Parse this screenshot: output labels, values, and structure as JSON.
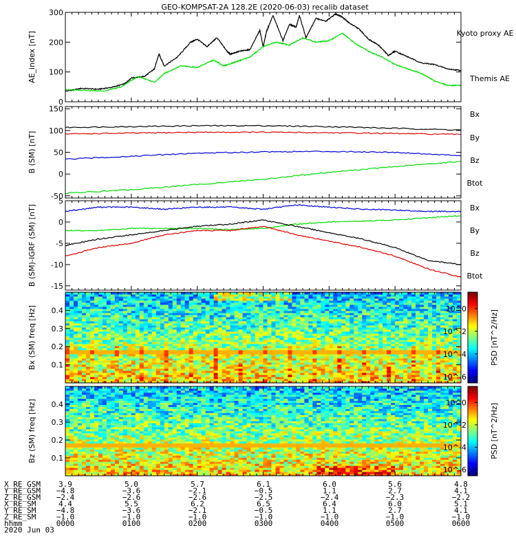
{
  "title": "GEO-KOMPSAT-2A 128.2E (2020-06-03) recalib dataset",
  "chart_data": [
    {
      "type": "line",
      "ylabel": "AE_index [nT]",
      "ylim": [
        0,
        300
      ],
      "yticks": [
        0,
        100,
        200,
        300
      ],
      "xlim": [
        0,
        6
      ],
      "x_unit": "hours UT",
      "legend": [
        "Kyoto proxy AE",
        "Themis AE"
      ],
      "series": [
        {
          "name": "Themis AE",
          "color": "#000000",
          "x": [
            0,
            0.25,
            0.5,
            0.7,
            0.9,
            1.0,
            1.2,
            1.35,
            1.42,
            1.5,
            1.7,
            1.9,
            2.0,
            2.15,
            2.3,
            2.45,
            2.5,
            2.65,
            2.8,
            2.95,
            3.0,
            3.05,
            3.15,
            3.3,
            3.4,
            3.5,
            3.55,
            3.65,
            3.8,
            3.95,
            4.1,
            4.2,
            4.3,
            4.45,
            4.6,
            4.75,
            4.9,
            5.0,
            5.2,
            5.4,
            5.6,
            5.8,
            6.0
          ],
          "values": [
            35,
            45,
            42,
            48,
            60,
            80,
            85,
            110,
            160,
            120,
            150,
            200,
            210,
            185,
            215,
            170,
            160,
            170,
            175,
            240,
            185,
            235,
            290,
            205,
            260,
            250,
            290,
            215,
            280,
            270,
            295,
            285,
            265,
            245,
            210,
            190,
            155,
            170,
            150,
            130,
            125,
            110,
            105
          ]
        },
        {
          "name": "Kyoto proxy AE",
          "color": "#00dd00",
          "x": [
            0,
            0.3,
            0.6,
            0.85,
            1.1,
            1.35,
            1.5,
            1.75,
            2.0,
            2.25,
            2.4,
            2.6,
            2.8,
            3.0,
            3.2,
            3.4,
            3.6,
            3.8,
            4.0,
            4.2,
            4.4,
            4.6,
            4.8,
            5.0,
            5.2,
            5.4,
            5.6,
            5.8,
            6.0
          ],
          "values": [
            40,
            38,
            36,
            50,
            85,
            65,
            95,
            120,
            115,
            140,
            120,
            135,
            150,
            185,
            200,
            190,
            215,
            200,
            205,
            230,
            195,
            170,
            150,
            125,
            110,
            95,
            70,
            55,
            55
          ]
        }
      ]
    },
    {
      "type": "line",
      "ylabel": "B (SM) [nT]",
      "ylim": [
        -55,
        155
      ],
      "yticks": [
        -50,
        0,
        50,
        100,
        150
      ],
      "xlim": [
        0,
        6
      ],
      "legend": [
        "Bx",
        "By",
        "Bz",
        "Btot"
      ],
      "series": [
        {
          "name": "Btot",
          "color": "#000000",
          "x": [
            0,
            1,
            2,
            3,
            4,
            5,
            6
          ],
          "values": [
            107,
            109,
            111,
            111,
            109,
            105,
            101
          ]
        },
        {
          "name": "Bz",
          "color": "#dd0000",
          "x": [
            0,
            1,
            2,
            3,
            4,
            5,
            6
          ],
          "values": [
            92,
            94,
            96,
            96,
            95,
            93,
            91
          ]
        },
        {
          "name": "Bx",
          "color": "#0000dd",
          "x": [
            0,
            1,
            2,
            3,
            4,
            5,
            6
          ],
          "values": [
            34,
            41,
            48,
            51,
            52,
            50,
            42
          ]
        },
        {
          "name": "By",
          "color": "#00dd00",
          "x": [
            0,
            1,
            2,
            3,
            4,
            5,
            6
          ],
          "values": [
            -44,
            -36,
            -24,
            -12,
            4,
            17,
            29
          ]
        }
      ]
    },
    {
      "type": "line",
      "ylabel": "B (SM)-IGRF (SM) [nT]",
      "ylim": [
        -16,
        5
      ],
      "yticks": [
        -15,
        -10,
        -5,
        0,
        5
      ],
      "xlim": [
        0,
        6
      ],
      "legend": [
        "Bx",
        "By",
        "Bz",
        "Btot"
      ],
      "series": [
        {
          "name": "Bx",
          "color": "#0000dd",
          "x": [
            0,
            0.5,
            1,
            1.5,
            2,
            2.5,
            3,
            3.5,
            4,
            4.5,
            5,
            5.5,
            6
          ],
          "values": [
            2.5,
            3.5,
            3.5,
            3,
            3.5,
            3.5,
            3,
            4,
            3.5,
            3,
            2.8,
            2.5,
            2.5
          ]
        },
        {
          "name": "By",
          "color": "#00dd00",
          "x": [
            0,
            0.5,
            1,
            1.5,
            2,
            2.5,
            3,
            3.5,
            4,
            4.5,
            5,
            5.5,
            6
          ],
          "values": [
            -2,
            -2,
            -1.5,
            -1.5,
            -1.5,
            -1.8,
            -1.5,
            -0.5,
            0,
            0.2,
            0.5,
            1,
            1.5
          ]
        },
        {
          "name": "Bz",
          "color": "#dd0000",
          "x": [
            0,
            0.5,
            1,
            1.5,
            2,
            2.5,
            3,
            3.5,
            4,
            4.5,
            5,
            5.5,
            6
          ],
          "values": [
            -8,
            -6,
            -5,
            -3,
            -2,
            -2,
            -1,
            -3,
            -4.5,
            -6,
            -8,
            -11,
            -13
          ]
        },
        {
          "name": "Btot",
          "color": "#000000",
          "x": [
            0,
            0.5,
            1,
            1.5,
            2,
            2.5,
            3,
            3.5,
            4,
            4.5,
            5,
            5.5,
            6
          ],
          "values": [
            -5.5,
            -4,
            -3,
            -2,
            -1,
            -0.5,
            0.5,
            -1,
            -2.5,
            -4,
            -6,
            -9,
            -10
          ]
        }
      ]
    },
    {
      "type": "heatmap",
      "ylabel": "Bx (SM) freq [Hz]",
      "ylim": [
        0,
        0.5
      ],
      "yticks": [
        0.1,
        0.2,
        0.3,
        0.4
      ],
      "xlim": [
        0,
        6
      ],
      "colorbar": {
        "label": "PSD [nT^2/Hz]",
        "ticks": [
          "10^0",
          "10^-2",
          "10^-4",
          "10^-6"
        ]
      }
    },
    {
      "type": "heatmap",
      "ylabel": "Bz (SM) freq [Hz]",
      "ylim": [
        0,
        0.5
      ],
      "yticks": [
        0.1,
        0.2,
        0.3,
        0.4
      ],
      "xlim": [
        0,
        6
      ],
      "colorbar": {
        "label": "PSD [nT^2/Hz]",
        "ticks": [
          "10^0",
          "10^-2",
          "10^-4",
          "10^-6"
        ]
      }
    }
  ],
  "ephemeris": {
    "rows": [
      {
        "label": "X_RE_GSM",
        "values": [
          "3.9",
          "5.0",
          "5.7",
          "6.1",
          "6.0",
          "5.6",
          "4.8"
        ]
      },
      {
        "label": "Y_RE_GSM",
        "values": [
          "−4.8",
          "−3.6",
          "−2.1",
          "−0.5",
          "1.1",
          "2.7",
          "4.1"
        ]
      },
      {
        "label": "Z_RE_GSM",
        "values": [
          "−2.4",
          "−2.6",
          "−2.6",
          "−2.5",
          "−2.4",
          "−2.3",
          "−2.2"
        ]
      },
      {
        "label": "X_RE_SM",
        "values": [
          "4.4",
          "5.5",
          "6.2",
          "6.5",
          "6.4",
          "6.0",
          "5.1"
        ]
      },
      {
        "label": "Y_RE_SM",
        "values": [
          "−4.8",
          "−3.6",
          "−2.1",
          "−0.5",
          "1.1",
          "2.7",
          "4.1"
        ]
      },
      {
        "label": "Z_RE_SM",
        "values": [
          "−1.0",
          "−1.0",
          "−1.0",
          "−1.0",
          "−1.0",
          "−1.0",
          "−1.0"
        ]
      },
      {
        "label": "hhmm",
        "values": [
          "0000",
          "0100",
          "0200",
          "0300",
          "0400",
          "0500",
          "0600"
        ]
      }
    ],
    "date": "2020 Jun 03"
  }
}
